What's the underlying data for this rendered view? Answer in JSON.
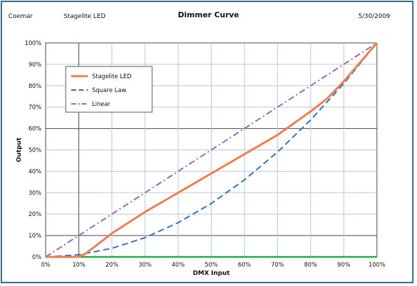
{
  "header": {
    "left": "Coemar",
    "product": "Stagelite LED",
    "date": "5/30/2009"
  },
  "chart_data": {
    "type": "line",
    "title": "Dimmer Curve",
    "xlabel": "DMX Input",
    "ylabel": "Output",
    "xlim": [
      0,
      100
    ],
    "ylim": [
      0,
      100
    ],
    "x_ticks": [
      "0%",
      "10%",
      "20%",
      "30%",
      "40%",
      "50%",
      "60%",
      "70%",
      "80%",
      "90%",
      "100%"
    ],
    "y_ticks": [
      "0%",
      "10%",
      "20%",
      "30%",
      "40%",
      "50%",
      "60%",
      "70%",
      "80%",
      "90%",
      "100%"
    ],
    "legend_position": "upper-left",
    "grid": true,
    "series": [
      {
        "name": "Stagelite LED",
        "color": "#f47c4c",
        "style": "solid",
        "points": [
          [
            0,
            0
          ],
          [
            10,
            0
          ],
          [
            12,
            1.5
          ],
          [
            15,
            5
          ],
          [
            20,
            11
          ],
          [
            30,
            21
          ],
          [
            40,
            30
          ],
          [
            50,
            39
          ],
          [
            60,
            48
          ],
          [
            70,
            57
          ],
          [
            80,
            68
          ],
          [
            85,
            74
          ],
          [
            90,
            82
          ],
          [
            95,
            91
          ],
          [
            100,
            100
          ]
        ]
      },
      {
        "name": "Square Law",
        "color": "#2f6fd0",
        "style": "dashed",
        "points": [
          [
            0,
            0
          ],
          [
            10,
            1
          ],
          [
            20,
            4
          ],
          [
            30,
            9
          ],
          [
            40,
            16
          ],
          [
            50,
            25
          ],
          [
            60,
            36
          ],
          [
            70,
            49
          ],
          [
            80,
            64
          ],
          [
            90,
            81
          ],
          [
            100,
            100
          ]
        ]
      },
      {
        "name": "Linear",
        "color": "#9966cc",
        "style": "dashdot",
        "points": [
          [
            0,
            0
          ],
          [
            100,
            100
          ]
        ]
      }
    ],
    "baseline": {
      "color": "#22aa44",
      "y": 0
    }
  }
}
